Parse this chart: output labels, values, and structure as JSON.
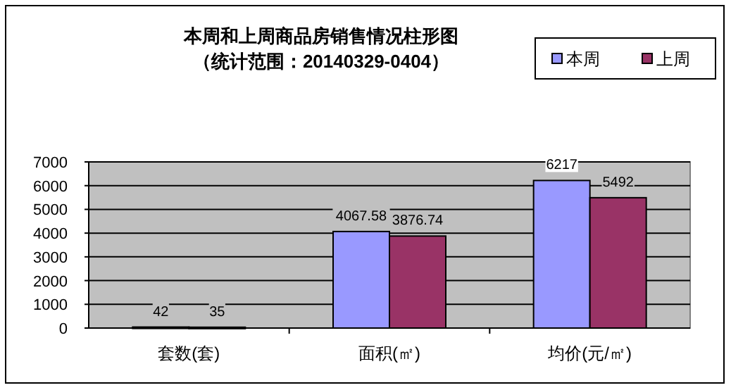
{
  "chart_data": {
    "type": "bar",
    "title": "本周和上周商品房销售情况柱形图",
    "subtitle": "（统计范围：20140329-0404）",
    "categories": [
      "套数(套)",
      "面积(㎡)",
      "均价(元/㎡)"
    ],
    "series": [
      {
        "name": "本周",
        "color": "#9999ff",
        "values": [
          42,
          4067.58,
          6217
        ]
      },
      {
        "name": "上周",
        "color": "#993366",
        "values": [
          35,
          3876.74,
          5492
        ]
      }
    ],
    "ylim": [
      0,
      7000
    ],
    "yticks": [
      0,
      1000,
      2000,
      3000,
      4000,
      5000,
      6000,
      7000
    ],
    "grid": "y",
    "legend": "top right",
    "data_labels": true
  }
}
